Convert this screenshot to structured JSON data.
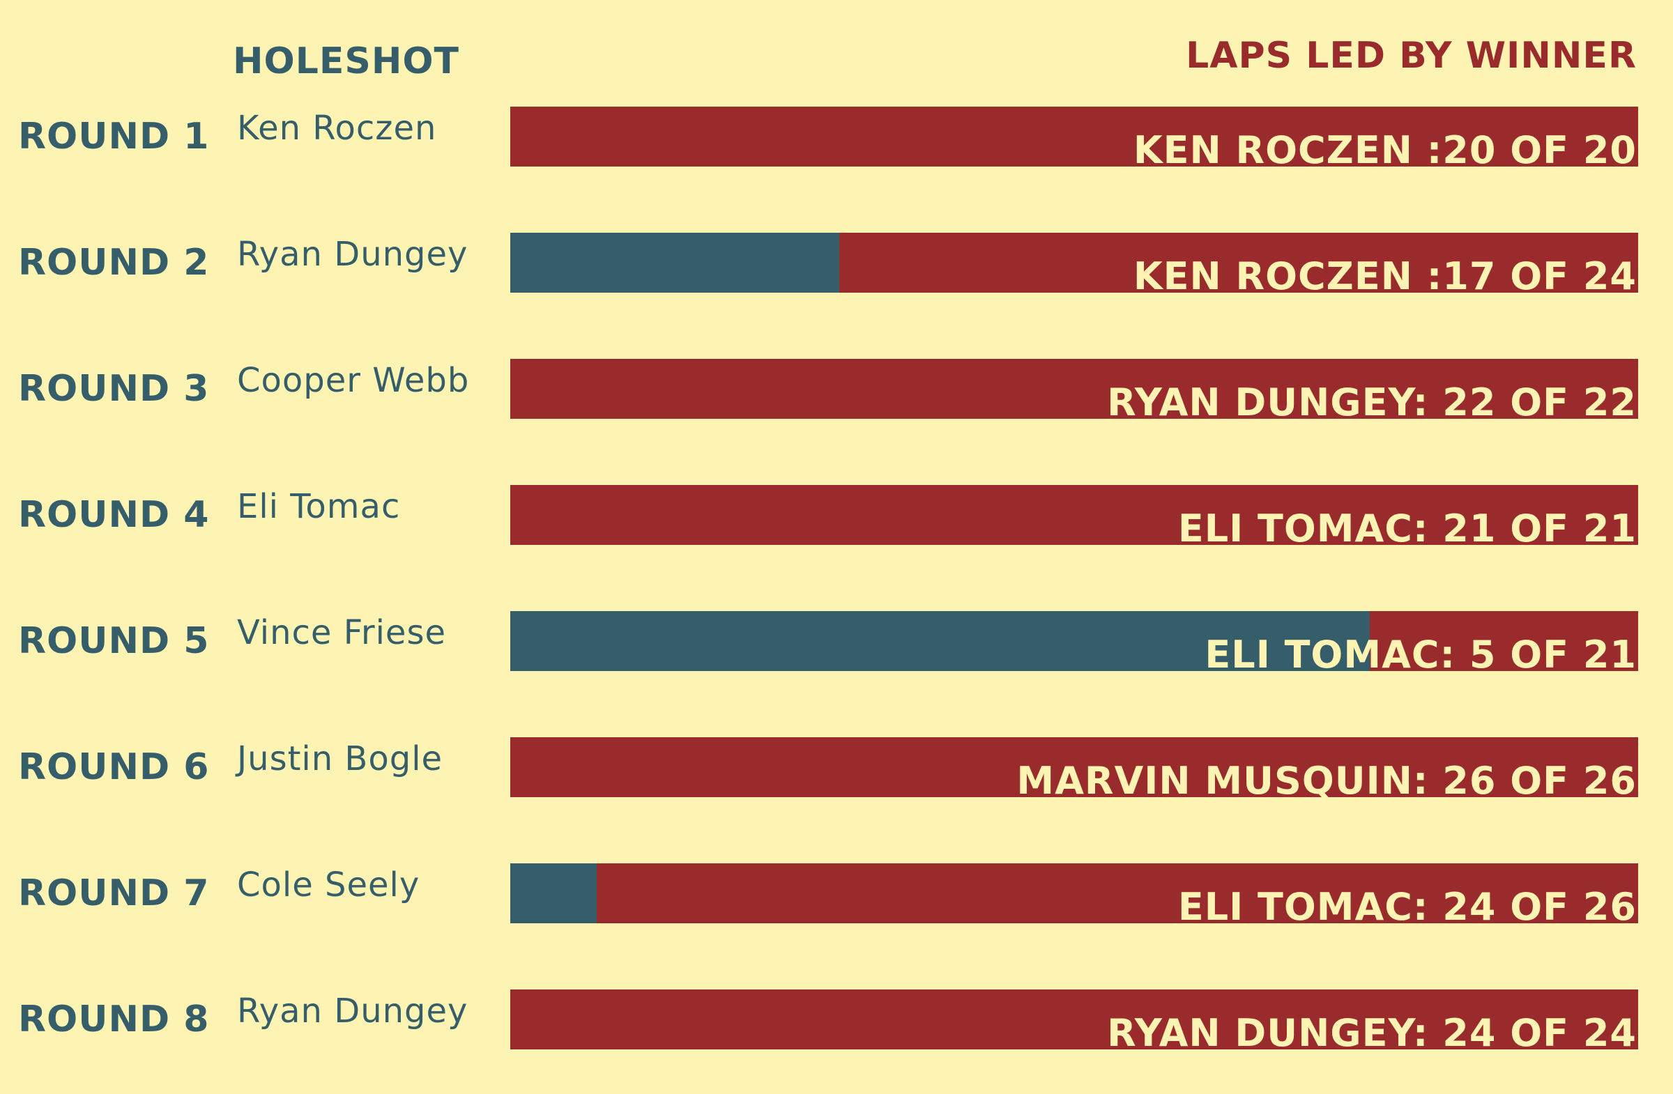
{
  "headers": {
    "holeshot": "HOLESHOT",
    "laps_led": "LAPS LED BY WINNER"
  },
  "colors": {
    "background": "#fdf4b4",
    "winner_laps_led": "#9a2b2c",
    "laps_not_led": "#365e6a"
  },
  "chart_data": {
    "type": "bar",
    "orientation": "horizontal",
    "stacked": true,
    "categories": [
      "ROUND 1",
      "ROUND 2",
      "ROUND 3",
      "ROUND 4",
      "ROUND 5",
      "ROUND 6",
      "ROUND 7",
      "ROUND 8"
    ],
    "rows": [
      {
        "round": "ROUND 1",
        "holeshot": "Ken Roczen",
        "label": "KEN ROCZEN :20 OF 20",
        "laps_led": 20,
        "total_laps": 20
      },
      {
        "round": "ROUND 2",
        "holeshot": "Ryan Dungey",
        "label": "KEN ROCZEN :17 OF 24",
        "laps_led": 17,
        "total_laps": 24
      },
      {
        "round": "ROUND 3",
        "holeshot": "Cooper Webb",
        "label": "RYAN DUNGEY: 22 OF 22",
        "laps_led": 22,
        "total_laps": 22
      },
      {
        "round": "ROUND 4",
        "holeshot": "Eli Tomac",
        "label": "ELI TOMAC: 21 OF 21",
        "laps_led": 21,
        "total_laps": 21
      },
      {
        "round": "ROUND 5",
        "holeshot": "Vince Friese",
        "label": "ELI TOMAC: 5 OF 21",
        "laps_led": 5,
        "total_laps": 21
      },
      {
        "round": "ROUND 6",
        "holeshot": "Justin Bogle",
        "label": "MARVIN MUSQUIN: 26 OF 26",
        "laps_led": 26,
        "total_laps": 26
      },
      {
        "round": "ROUND 7",
        "holeshot": "Cole Seely",
        "label": "ELI TOMAC: 24 OF 26",
        "laps_led": 24,
        "total_laps": 26
      },
      {
        "round": "ROUND 8",
        "holeshot": "Ryan Dungey",
        "label": "RYAN DUNGEY: 24 OF 24",
        "laps_led": 24,
        "total_laps": 24
      }
    ]
  }
}
